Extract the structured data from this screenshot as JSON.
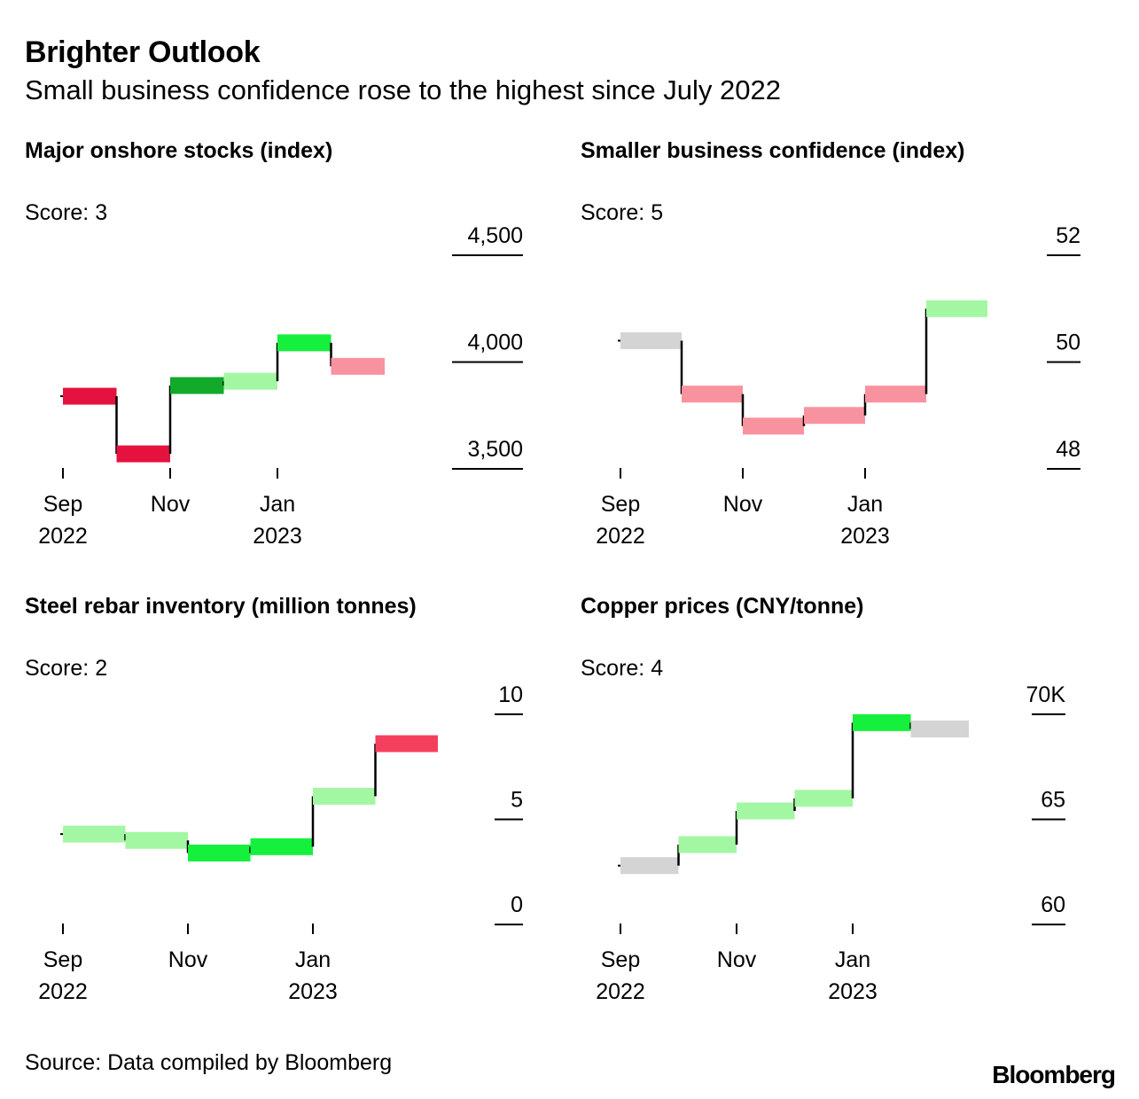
{
  "header": {
    "title": "Brighter Outlook",
    "subtitle": "Small business confidence rose to the highest since July 2022"
  },
  "footer": {
    "source": "Source: Data compiled by Bloomberg",
    "brand": "Bloomberg"
  },
  "colors": {
    "neutral": "#d4d4d4",
    "light_green": "#a3f7a3",
    "bright_green": "#14f03c",
    "dark_green": "#12aa2a",
    "light_red": "#f9929f",
    "red": "#e5123f",
    "mid_red": "#f5405d"
  },
  "chart_data": [
    {
      "id": "stocks",
      "type": "step",
      "title": "Major onshore stocks (index)",
      "score_label": "Score: 3",
      "ylim": [
        3450,
        4550
      ],
      "yticks": [
        {
          "value": 4500,
          "label": "4,500"
        },
        {
          "value": 4000,
          "label": "4,000"
        },
        {
          "value": 3500,
          "label": "3,500"
        }
      ],
      "xticks": [
        {
          "month": 0,
          "label": "Sep",
          "sub": "2022"
        },
        {
          "month": 2,
          "label": "Nov",
          "sub": ""
        },
        {
          "month": 4,
          "label": "Jan",
          "sub": "2023"
        }
      ],
      "start_value": 3840,
      "series": [
        {
          "month": "Sep 2022",
          "value": 3840,
          "color": "red"
        },
        {
          "month": "Oct 2022",
          "value": 3570,
          "color": "red"
        },
        {
          "month": "Nov 2022",
          "value": 3890,
          "color": "dark_green"
        },
        {
          "month": "Dec 2022",
          "value": 3910,
          "color": "light_green"
        },
        {
          "month": "Jan 2023",
          "value": 4090,
          "color": "bright_green"
        },
        {
          "month": "Feb 2023",
          "value": 3980,
          "color": "light_red"
        }
      ]
    },
    {
      "id": "confidence",
      "type": "step",
      "title": "Smaller business confidence (index)",
      "score_label": "Score: 5",
      "ylim": [
        47.8,
        52.2
      ],
      "yticks": [
        {
          "value": 52,
          "label": "52"
        },
        {
          "value": 50,
          "label": "50"
        },
        {
          "value": 48,
          "label": "48"
        }
      ],
      "xticks": [
        {
          "month": 0,
          "label": "Sep",
          "sub": "2022"
        },
        {
          "month": 2,
          "label": "Nov",
          "sub": ""
        },
        {
          "month": 4,
          "label": "Jan",
          "sub": "2023"
        }
      ],
      "start_value": 50.4,
      "series": [
        {
          "month": "Sep 2022",
          "value": 50.4,
          "color": "neutral"
        },
        {
          "month": "Oct 2022",
          "value": 49.4,
          "color": "light_red"
        },
        {
          "month": "Nov 2022",
          "value": 48.8,
          "color": "light_red"
        },
        {
          "month": "Dec 2022",
          "value": 49.0,
          "color": "light_red"
        },
        {
          "month": "Jan 2023",
          "value": 49.4,
          "color": "light_red"
        },
        {
          "month": "Feb 2023",
          "value": 51.0,
          "color": "light_green"
        }
      ]
    },
    {
      "id": "rebar",
      "type": "step",
      "title": "Steel rebar inventory (million tonnes)",
      "score_label": "Score: 2",
      "ylim": [
        -0.5,
        10.5
      ],
      "yticks": [
        {
          "value": 10,
          "label": "10"
        },
        {
          "value": 5,
          "label": "5"
        },
        {
          "value": 0,
          "label": "0"
        }
      ],
      "xticks": [
        {
          "month": 0,
          "label": "Sep",
          "sub": "2022"
        },
        {
          "month": 2,
          "label": "Nov",
          "sub": ""
        },
        {
          "month": 4,
          "label": "Jan",
          "sub": "2023"
        }
      ],
      "start_value": 4.3,
      "series": [
        {
          "month": "Sep 2022",
          "value": 4.3,
          "color": "light_green"
        },
        {
          "month": "Oct 2022",
          "value": 4.0,
          "color": "light_green"
        },
        {
          "month": "Nov 2022",
          "value": 3.4,
          "color": "bright_green"
        },
        {
          "month": "Dec 2022",
          "value": 3.7,
          "color": "bright_green"
        },
        {
          "month": "Jan 2023",
          "value": 6.1,
          "color": "light_green"
        },
        {
          "month": "Feb 2023",
          "value": 8.6,
          "color": "mid_red"
        }
      ]
    },
    {
      "id": "copper",
      "type": "step",
      "title": "Copper prices (CNY/tonne)",
      "score_label": "Score: 4",
      "ylim": [
        59.5,
        70.5
      ],
      "yticks": [
        {
          "value": 70,
          "label": "70K"
        },
        {
          "value": 65,
          "label": "65"
        },
        {
          "value": 60,
          "label": "60"
        }
      ],
      "xticks": [
        {
          "month": 0,
          "label": "Sep",
          "sub": "2022"
        },
        {
          "month": 2,
          "label": "Nov",
          "sub": ""
        },
        {
          "month": 4,
          "label": "Jan",
          "sub": "2023"
        }
      ],
      "start_value": 62.8,
      "series": [
        {
          "month": "Sep 2022",
          "value": 62.8,
          "color": "neutral"
        },
        {
          "month": "Oct 2022",
          "value": 63.8,
          "color": "light_green"
        },
        {
          "month": "Nov 2022",
          "value": 65.4,
          "color": "light_green"
        },
        {
          "month": "Dec 2022",
          "value": 66.0,
          "color": "light_green"
        },
        {
          "month": "Jan 2023",
          "value": 69.6,
          "color": "bright_green"
        },
        {
          "month": "Feb 2023",
          "value": 69.3,
          "color": "neutral"
        }
      ]
    }
  ]
}
